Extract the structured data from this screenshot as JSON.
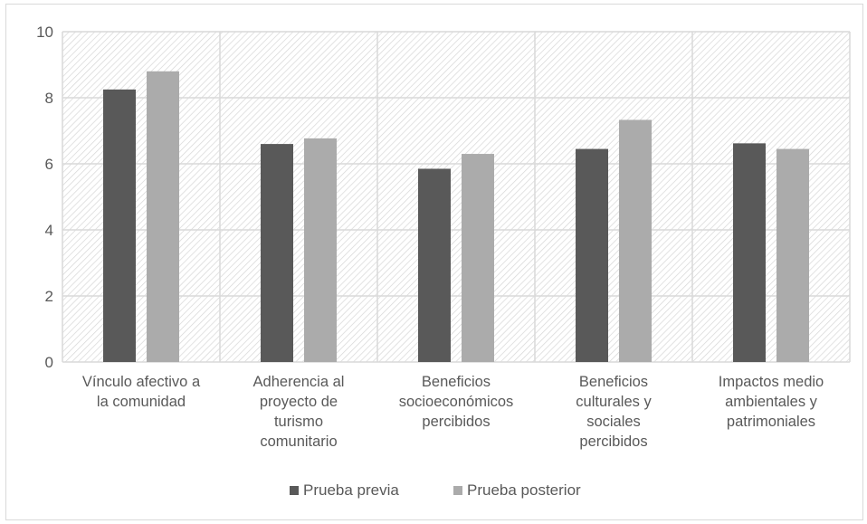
{
  "chart_data": {
    "type": "bar",
    "title": "",
    "xlabel": "",
    "ylabel": "",
    "ylim": [
      0,
      10
    ],
    "yticks": [
      0,
      2,
      4,
      6,
      8,
      10
    ],
    "grid": true,
    "legend_position": "bottom",
    "categories": [
      [
        "Vínculo afectivo a",
        "la comunidad"
      ],
      [
        "Adherencia al",
        "proyecto de",
        "turismo",
        "comunitario"
      ],
      [
        "Beneficios",
        "socioeconómicos",
        "percibidos"
      ],
      [
        "Beneficios",
        "culturales y",
        "sociales",
        "percibidos"
      ],
      [
        "Impactos medio",
        "ambientales y",
        "patrimoniales"
      ]
    ],
    "series": [
      {
        "name": "Prueba previa",
        "color": "#595959",
        "values": [
          8.25,
          6.6,
          5.85,
          6.45,
          6.62
        ]
      },
      {
        "name": "Prueba posterior",
        "color": "#ababab",
        "values": [
          8.8,
          6.77,
          6.3,
          7.33,
          6.45
        ]
      }
    ],
    "plot_background": "hatched-diagonal",
    "gridline_color": "#d9d9d9"
  }
}
